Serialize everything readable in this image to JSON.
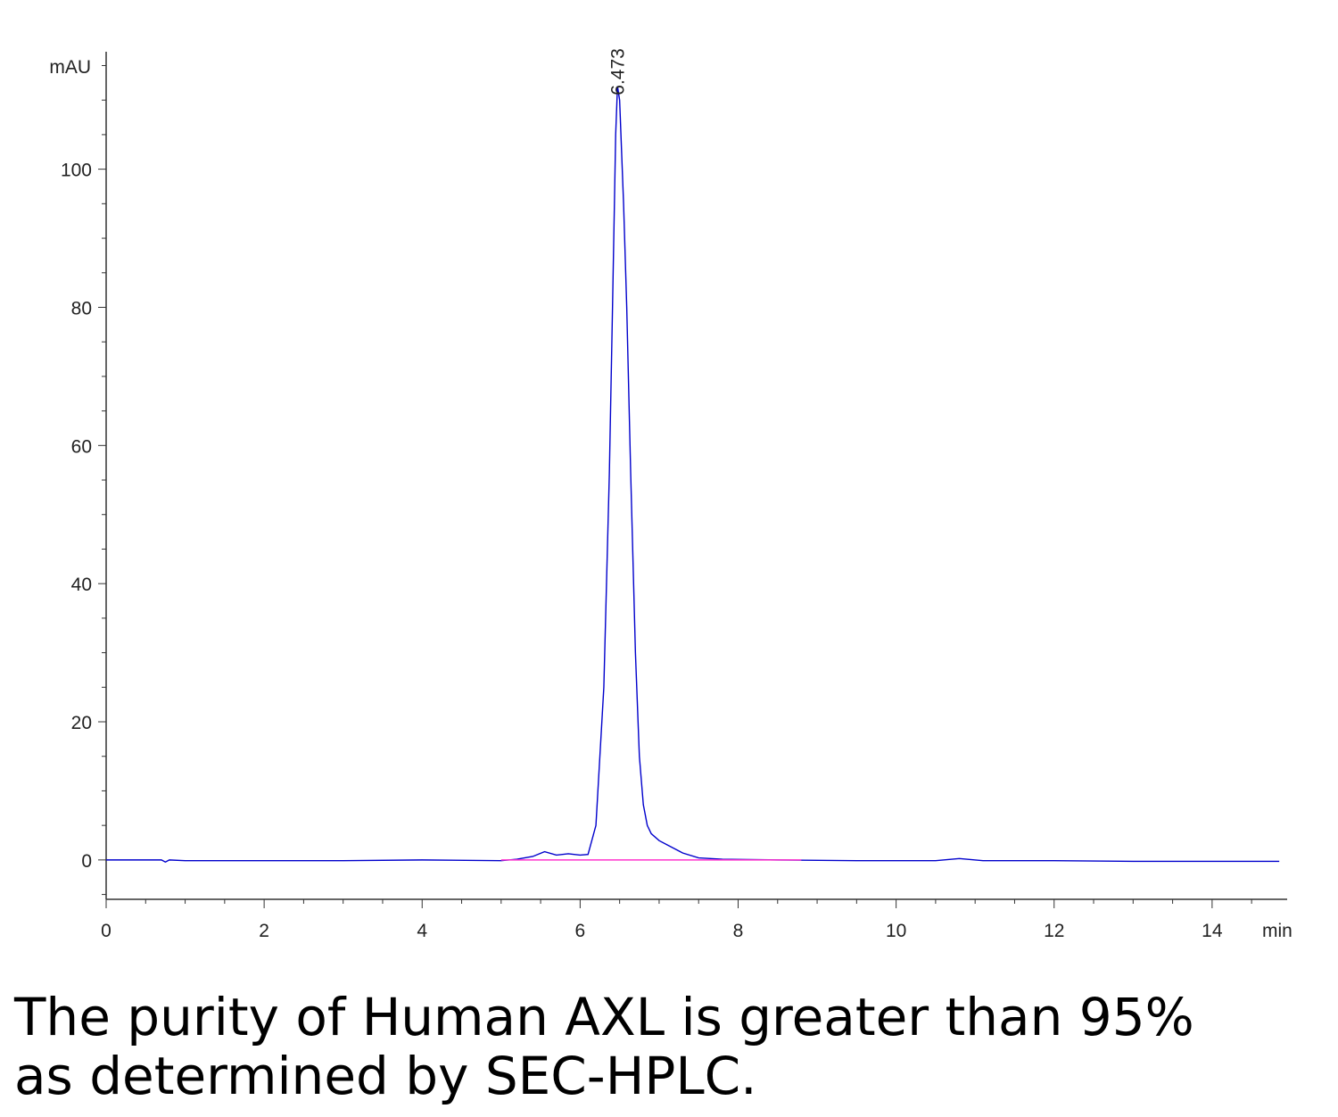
{
  "chart_data": {
    "type": "line",
    "xlabel": "min",
    "ylabel": "mAU",
    "annotation": {
      "text": "6.473",
      "x": 6.473,
      "y": 112
    },
    "xlim": [
      0,
      14.95
    ],
    "ylim": [
      -5.7,
      117
    ],
    "xticks": [
      0,
      2,
      4,
      6,
      8,
      10,
      12,
      14
    ],
    "yticks": [
      0,
      20,
      40,
      60,
      80,
      100
    ],
    "xminorticks": [
      0.5,
      1,
      1.5,
      2.5,
      3,
      3.5,
      4.5,
      5,
      5.5,
      6.5,
      7,
      7.5,
      8.5,
      9,
      9.5,
      10.5,
      11,
      11.5,
      12.5,
      13,
      13.5,
      14.5
    ],
    "yminorticks": [
      -5,
      5,
      10,
      15,
      25,
      30,
      35,
      45,
      50,
      55,
      65,
      70,
      75,
      85,
      90,
      95,
      105,
      110,
      115
    ],
    "grid": false,
    "series": [
      {
        "color": "#0000cc",
        "x": [
          0,
          0.7,
          0.75,
          0.8,
          1,
          2,
          3,
          4,
          5,
          5.2,
          5.4,
          5.55,
          5.7,
          5.85,
          6.0,
          6.1,
          6.2,
          6.3,
          6.37,
          6.41,
          6.45,
          6.473,
          6.5,
          6.55,
          6.59,
          6.64,
          6.7,
          6.75,
          6.8,
          6.85,
          6.9,
          7.0,
          7.1,
          7.2,
          7.3,
          7.5,
          7.8,
          8.5,
          9.5,
          10.5,
          10.8,
          11.1,
          12,
          13,
          14.5,
          14.85
        ],
        "values": [
          0,
          0,
          -0.3,
          0,
          -0.1,
          -0.1,
          -0.1,
          0,
          -0.1,
          0.1,
          0.5,
          1.2,
          0.7,
          0.9,
          0.7,
          0.8,
          5,
          25,
          56,
          80,
          105,
          112,
          110,
          95,
          80,
          56,
          30,
          15,
          8,
          5,
          3.8,
          2.8,
          2.2,
          1.6,
          1.0,
          0.3,
          0.1,
          0,
          -0.1,
          -0.1,
          0.2,
          -0.1,
          -0.1,
          -0.2,
          -0.2,
          -0.2
        ]
      },
      {
        "color": "#ff33cc",
        "x": [
          5.0,
          8.8
        ],
        "values": [
          0,
          0
        ]
      }
    ]
  },
  "caption": [
    "The purity of Human AXL is greater than 95%",
    "as determined by SEC-HPLC."
  ]
}
